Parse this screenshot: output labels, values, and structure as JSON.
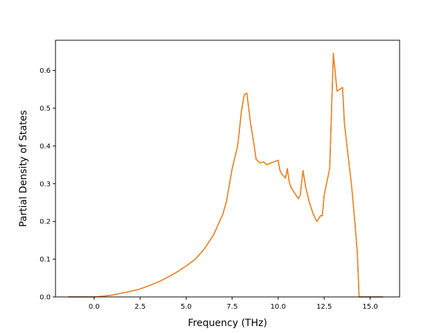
{
  "chart_data": {
    "type": "line",
    "title": "",
    "xlabel": "Frequency (THz)",
    "ylabel": "Partial Density of States",
    "xlim": [
      -2.1,
      16.6
    ],
    "ylim": [
      0.0,
      0.68
    ],
    "xticks": [
      0.0,
      2.5,
      5.0,
      7.5,
      10.0,
      12.5,
      15.0
    ],
    "xtick_labels": [
      "0.0",
      "2.5",
      "5.0",
      "7.5",
      "10.0",
      "12.5",
      "15.0"
    ],
    "yticks": [
      0.0,
      0.1,
      0.2,
      0.3,
      0.4,
      0.5,
      0.6
    ],
    "ytick_labels": [
      "0.0",
      "0.1",
      "0.2",
      "0.3",
      "0.4",
      "0.5",
      "0.6"
    ],
    "grid": false,
    "series": [
      {
        "color": "#1f77b4",
        "x": [
          -1.4,
          0.0,
          0.5,
          1.0,
          1.5,
          2.0,
          2.5,
          3.0,
          3.5,
          4.0,
          4.5,
          5.0,
          5.5,
          6.0,
          6.5,
          7.0,
          7.2,
          7.5,
          7.8,
          8.0,
          8.15,
          8.3,
          8.5,
          8.7,
          8.8,
          9.0,
          9.2,
          9.4,
          9.6,
          10.0,
          10.1,
          10.2,
          10.4,
          10.5,
          10.6,
          10.7,
          10.9,
          11.1,
          11.2,
          11.35,
          11.5,
          11.7,
          11.9,
          12.1,
          12.3,
          12.4,
          12.5,
          12.8,
          13.0,
          13.2,
          13.5,
          13.6,
          14.0,
          14.2,
          14.3,
          14.4,
          15.0,
          15.7
        ],
        "y": [
          0.0,
          0.0,
          0.002,
          0.005,
          0.01,
          0.015,
          0.021,
          0.03,
          0.04,
          0.052,
          0.066,
          0.082,
          0.1,
          0.128,
          0.165,
          0.22,
          0.255,
          0.34,
          0.4,
          0.49,
          0.535,
          0.54,
          0.46,
          0.4,
          0.365,
          0.355,
          0.358,
          0.35,
          0.355,
          0.362,
          0.335,
          0.325,
          0.315,
          0.34,
          0.305,
          0.29,
          0.275,
          0.26,
          0.27,
          0.335,
          0.29,
          0.25,
          0.22,
          0.2,
          0.215,
          0.215,
          0.27,
          0.34,
          0.645,
          0.545,
          0.555,
          0.46,
          0.29,
          0.18,
          0.12,
          0.0,
          0.0,
          0.0
        ]
      },
      {
        "color": "#ff7f0e",
        "x": [
          -1.4,
          0.0,
          0.5,
          1.0,
          1.5,
          2.0,
          2.5,
          3.0,
          3.5,
          4.0,
          4.5,
          5.0,
          5.5,
          6.0,
          6.5,
          7.0,
          7.2,
          7.5,
          7.8,
          8.0,
          8.15,
          8.3,
          8.5,
          8.7,
          8.8,
          9.0,
          9.2,
          9.4,
          9.6,
          10.0,
          10.1,
          10.2,
          10.4,
          10.5,
          10.6,
          10.7,
          10.9,
          11.1,
          11.2,
          11.35,
          11.5,
          11.7,
          11.9,
          12.1,
          12.3,
          12.4,
          12.5,
          12.8,
          13.0,
          13.2,
          13.5,
          13.6,
          14.0,
          14.2,
          14.3,
          14.4,
          15.0,
          15.7
        ],
        "y": [
          0.0,
          0.0,
          0.002,
          0.005,
          0.01,
          0.015,
          0.021,
          0.03,
          0.04,
          0.052,
          0.066,
          0.082,
          0.1,
          0.128,
          0.165,
          0.22,
          0.255,
          0.34,
          0.4,
          0.49,
          0.535,
          0.54,
          0.46,
          0.4,
          0.365,
          0.355,
          0.358,
          0.35,
          0.355,
          0.362,
          0.335,
          0.325,
          0.315,
          0.34,
          0.305,
          0.29,
          0.275,
          0.26,
          0.27,
          0.335,
          0.29,
          0.25,
          0.22,
          0.2,
          0.215,
          0.215,
          0.27,
          0.34,
          0.645,
          0.545,
          0.555,
          0.46,
          0.29,
          0.18,
          0.12,
          0.0,
          0.0,
          0.0
        ]
      }
    ]
  }
}
